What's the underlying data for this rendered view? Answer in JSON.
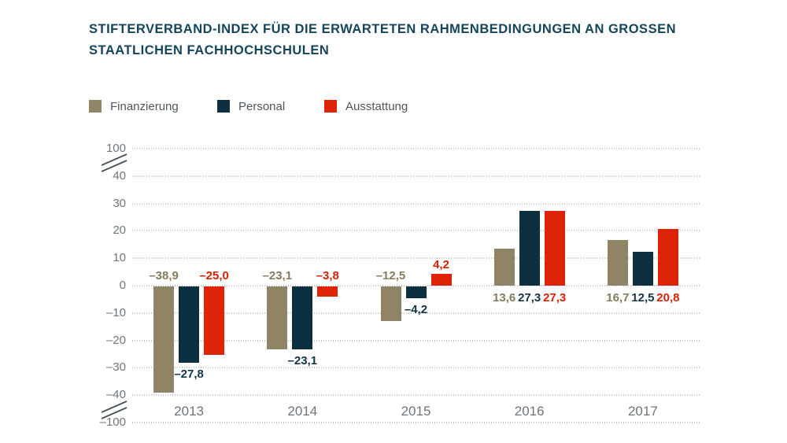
{
  "header": {
    "title_line1": "STIFTERVERBAND-INDEX FÜR DIE ERWARTETEN RAHMENBEDINGUNGEN AN GROSSEN",
    "title_line2": "STAATLICHEN FACHHOCHSCHULEN"
  },
  "chart_data": {
    "type": "bar",
    "title": "STIFTERVERBAND-INDEX FÜR DIE ERWARTETEN RAHMENBEDINGUNGEN AN GROSSEN STAATLICHEN FACHHOCHSCHULEN",
    "categories": [
      "2013",
      "2014",
      "2015",
      "2016",
      "2017"
    ],
    "series": [
      {
        "name": "Finanzierung",
        "color": "#8f8466",
        "label_color": "#877b5d",
        "values": [
          -38.9,
          -23.1,
          -12.5,
          13.6,
          16.7
        ],
        "labels": [
          "–38,9",
          "–23,1",
          "–12,5",
          "13,6",
          "16,7"
        ],
        "label_positions": [
          "top",
          "top",
          "top",
          "below-base",
          "below-base"
        ]
      },
      {
        "name": "Personal",
        "color": "#0c3040",
        "label_color": "#123448",
        "values": [
          -27.8,
          -23.1,
          -4.2,
          27.3,
          12.5
        ],
        "labels": [
          "–27,8",
          "–23,1",
          "–4,2",
          "27,3",
          "12,5"
        ],
        "label_positions": [
          "below-bar",
          "below-bar",
          "below-bar",
          "below-base",
          "below-base"
        ]
      },
      {
        "name": "Ausstattung",
        "color": "#de2309",
        "label_color": "#dc2005",
        "values": [
          -25.0,
          -3.8,
          4.2,
          27.3,
          20.8
        ],
        "labels": [
          "–25,0",
          "–3,8",
          "4,2",
          "27,3",
          "20,8"
        ],
        "label_positions": [
          "top",
          "top",
          "above-bar",
          "below-base",
          "below-base"
        ]
      }
    ],
    "yticks": [
      "100",
      "40",
      "30",
      "20",
      "10",
      "0",
      "–10",
      "–20",
      "–30",
      "–40",
      "–100"
    ],
    "axis_breaks": [
      {
        "between": [
          "100",
          "40"
        ]
      },
      {
        "between": [
          "–40",
          "–100"
        ]
      }
    ],
    "ylim_visible": [
      -40,
      40
    ],
    "grid": "dotted-horizontal",
    "legend_position": "top-left",
    "xlabel": "",
    "ylabel": ""
  },
  "colors": {
    "title": "#16455a",
    "axis_text": "#6e757b",
    "legend_text": "#4f575d",
    "grid": "#c8c8c8",
    "break_mark": "#49525a",
    "background": "#ffffff"
  }
}
